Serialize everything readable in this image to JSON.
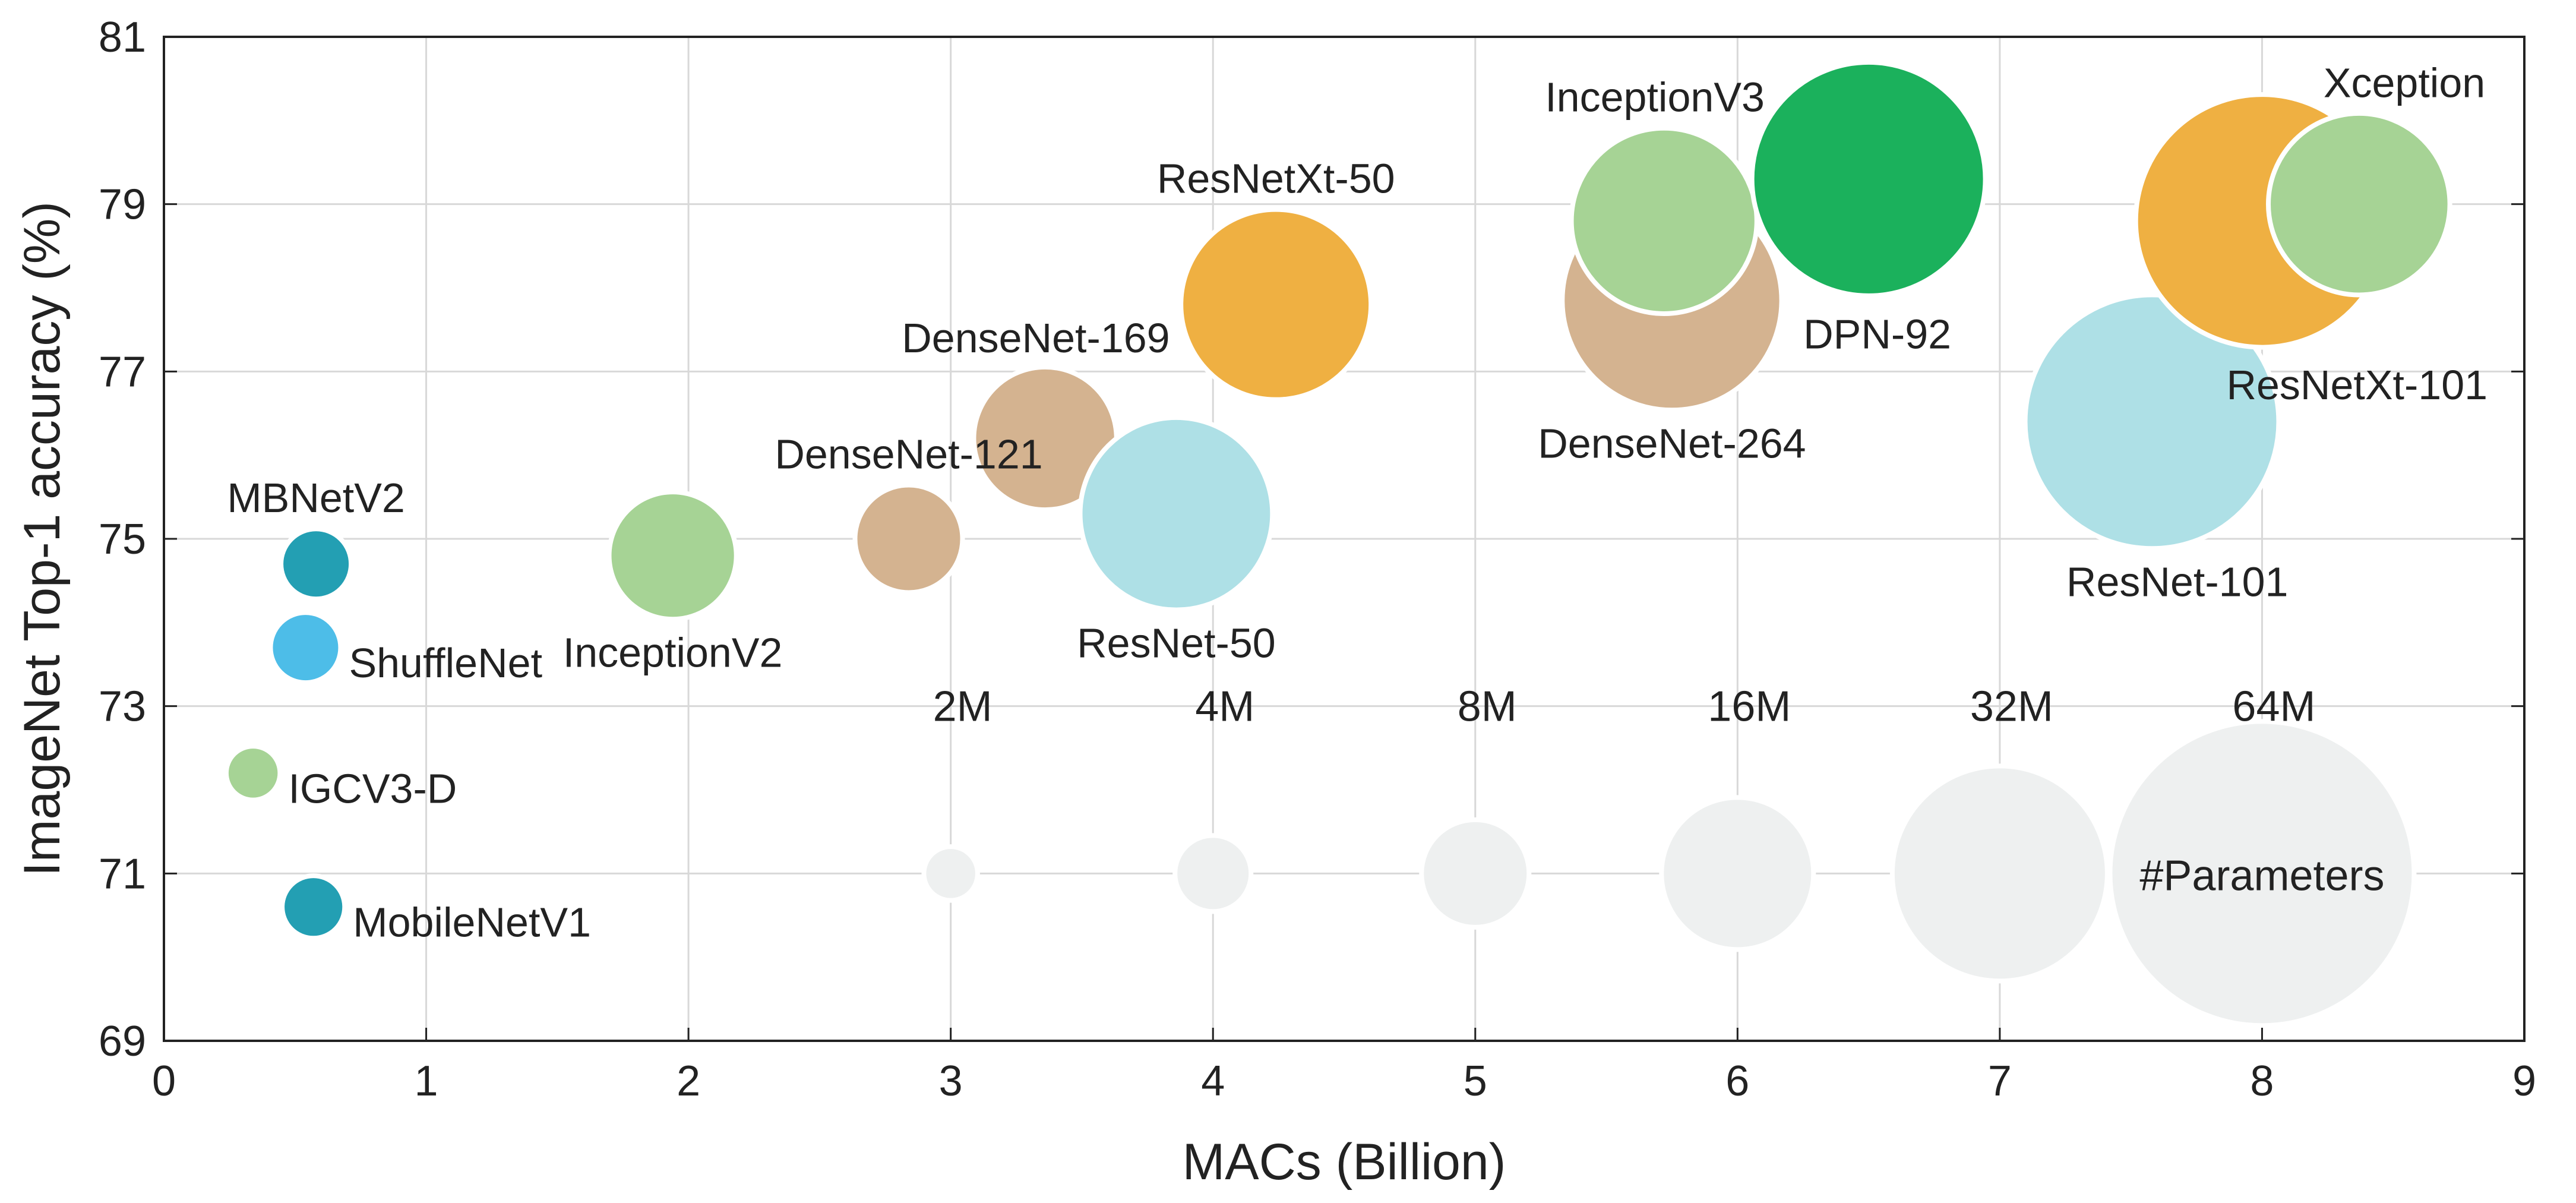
{
  "chart_data": {
    "type": "scatter",
    "subtype": "bubble",
    "xlabel": "MACs (Billion)",
    "ylabel": "ImageNet Top-1 accuracy (%)",
    "xlim": [
      0,
      9
    ],
    "ylim": [
      69,
      81
    ],
    "xticks": [
      "0",
      "1",
      "2",
      "3",
      "4",
      "5",
      "6",
      "7",
      "8",
      "9"
    ],
    "yticks": [
      "69",
      "71",
      "73",
      "75",
      "77",
      "79",
      "81"
    ],
    "grid": true,
    "bubble_size_encodes": "#Parameters",
    "colors": {
      "mobile_teal": "#239fb3",
      "light_blue": "#4dbde8",
      "light_green": "#a6d395",
      "tan": "#d4b390",
      "pale_cyan": "#aee0e6",
      "orange": "#efb042",
      "green": "#1bb15c",
      "legend_grey": "#eef0f0"
    },
    "points": [
      {
        "label": "MBNetV2",
        "x": 0.58,
        "y": 74.7,
        "params_M": 3.4,
        "color": "#239fb3"
      },
      {
        "label": "ShuffleNet",
        "x": 0.54,
        "y": 73.7,
        "params_M": 3.4,
        "color": "#4dbde8"
      },
      {
        "label": "IGCV3-D",
        "x": 0.34,
        "y": 72.2,
        "params_M": 2.0,
        "color": "#a6d395"
      },
      {
        "label": "MobileNetV1",
        "x": 0.57,
        "y": 70.6,
        "params_M": 2.7,
        "color": "#239fb3"
      },
      {
        "label": "InceptionV2",
        "x": 1.94,
        "y": 74.8,
        "params_M": 11.2,
        "color": "#a6d395"
      },
      {
        "label": "DenseNet-121",
        "x": 2.84,
        "y": 75.0,
        "params_M": 8.0,
        "color": "#d4b390"
      },
      {
        "label": "DenseNet-169",
        "x": 3.36,
        "y": 76.2,
        "params_M": 14.1,
        "color": "#d4b390"
      },
      {
        "label": "ResNet-50",
        "x": 3.86,
        "y": 75.3,
        "params_M": 25.6,
        "color": "#aee0e6"
      },
      {
        "label": "ResNetXt-50",
        "x": 4.24,
        "y": 77.8,
        "params_M": 25.0,
        "color": "#efb042"
      },
      {
        "label": "DenseNet-264",
        "x": 5.75,
        "y": 77.85,
        "params_M": 33.3,
        "color": "#d4b390"
      },
      {
        "label": "InceptionV3",
        "x": 5.72,
        "y": 78.8,
        "params_M": 23.8,
        "color": "#a6d395"
      },
      {
        "label": "DPN-92",
        "x": 6.5,
        "y": 79.3,
        "params_M": 37.7,
        "color": "#1bb15c"
      },
      {
        "label": "ResNet-101",
        "x": 7.58,
        "y": 76.4,
        "params_M": 44.5,
        "color": "#aee0e6"
      },
      {
        "label": "ResNetXt-101",
        "x": 8.0,
        "y": 78.8,
        "params_M": 44.2,
        "color": "#efb042"
      },
      {
        "label": "Xception",
        "x": 8.37,
        "y": 79.0,
        "params_M": 22.8,
        "color": "#a6d395"
      }
    ],
    "size_legend": {
      "title": "#Parameters",
      "y": 71,
      "items": [
        {
          "label": "2M",
          "x": 3,
          "params_M": 2
        },
        {
          "label": "4M",
          "x": 4,
          "params_M": 4
        },
        {
          "label": "8M",
          "x": 5,
          "params_M": 8
        },
        {
          "label": "16M",
          "x": 6,
          "params_M": 16
        },
        {
          "label": "32M",
          "x": 7,
          "params_M": 32
        },
        {
          "label": "64M",
          "x": 8,
          "params_M": 64
        }
      ]
    }
  }
}
